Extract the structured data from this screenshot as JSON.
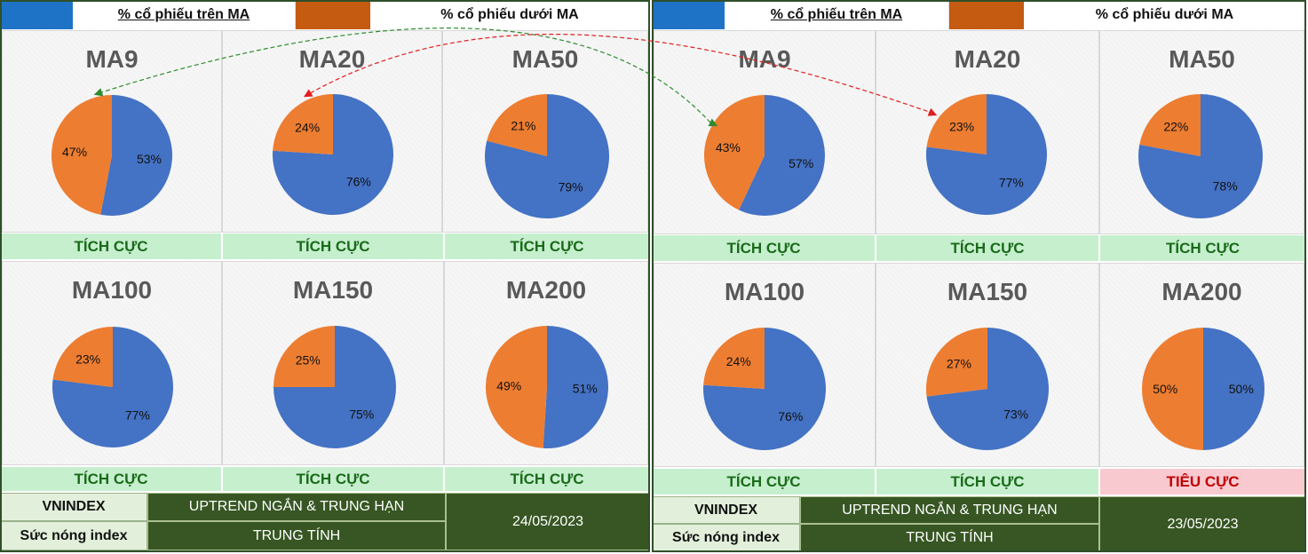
{
  "legend": {
    "above": "% cổ phiếu trên MA",
    "below": "% cổ phiếu dưới MA"
  },
  "colors": {
    "above": "#4472c4",
    "below": "#ed7d31",
    "positive_bg": "#c6efce",
    "negative_bg": "#f8c9cf",
    "dark_green": "#375623"
  },
  "chart_data": [
    {
      "type": "pie",
      "date": "24/05/2023",
      "series_names": [
        "% cổ phiếu trên MA",
        "% cổ phiếu dưới MA"
      ],
      "charts": [
        {
          "title": "MA9",
          "values": [
            53,
            47
          ],
          "labels": [
            "53%",
            "47%"
          ],
          "status": "TÍCH CỰC"
        },
        {
          "title": "MA20",
          "values": [
            76,
            24
          ],
          "labels": [
            "76%",
            "24%"
          ],
          "status": "TÍCH CỰC"
        },
        {
          "title": "MA50",
          "values": [
            79,
            21
          ],
          "labels": [
            "79%",
            "21%"
          ],
          "status": "TÍCH CỰC"
        },
        {
          "title": "MA100",
          "values": [
            77,
            23
          ],
          "labels": [
            "77%",
            "23%"
          ],
          "status": "TÍCH CỰC"
        },
        {
          "title": "MA150",
          "values": [
            75,
            25
          ],
          "labels": [
            "75%",
            "25%"
          ],
          "status": "TÍCH CỰC"
        },
        {
          "title": "MA200",
          "values": [
            51,
            49
          ],
          "labels": [
            "51%",
            "49%"
          ],
          "status": "TÍCH CỰC"
        }
      ]
    },
    {
      "type": "pie",
      "date": "23/05/2023",
      "series_names": [
        "% cổ phiếu trên MA",
        "% cổ phiếu dưới MA"
      ],
      "charts": [
        {
          "title": "MA9",
          "values": [
            57,
            43
          ],
          "labels": [
            "57%",
            "43%"
          ],
          "status": "TÍCH CỰC"
        },
        {
          "title": "MA20",
          "values": [
            77,
            23
          ],
          "labels": [
            "77%",
            "23%"
          ],
          "status": "TÍCH CỰC"
        },
        {
          "title": "MA50",
          "values": [
            78,
            22
          ],
          "labels": [
            "78%",
            "22%"
          ],
          "status": "TÍCH CỰC"
        },
        {
          "title": "MA100",
          "values": [
            76,
            24
          ],
          "labels": [
            "76%",
            "24%"
          ],
          "status": "TÍCH CỰC"
        },
        {
          "title": "MA150",
          "values": [
            73,
            27
          ],
          "labels": [
            "73%",
            "27%"
          ],
          "status": "TÍCH CỰC"
        },
        {
          "title": "MA200",
          "values": [
            50,
            50
          ],
          "labels": [
            "50%",
            "50%"
          ],
          "status": "TIÊU CỰC"
        }
      ]
    }
  ],
  "summary": [
    {
      "vnindex_label": "VNINDEX",
      "trend": "UPTREND NGẮN & TRUNG HẠN",
      "heat_label": "Sức nóng index",
      "heat_value": "TRUNG TÍNH",
      "date": "24/05/2023"
    },
    {
      "vnindex_label": "VNINDEX",
      "trend": "UPTREND NGẮN & TRUNG HẠN",
      "heat_label": "Sức nóng index",
      "heat_value": "TRUNG TÍNH",
      "date": "23/05/2023"
    }
  ]
}
